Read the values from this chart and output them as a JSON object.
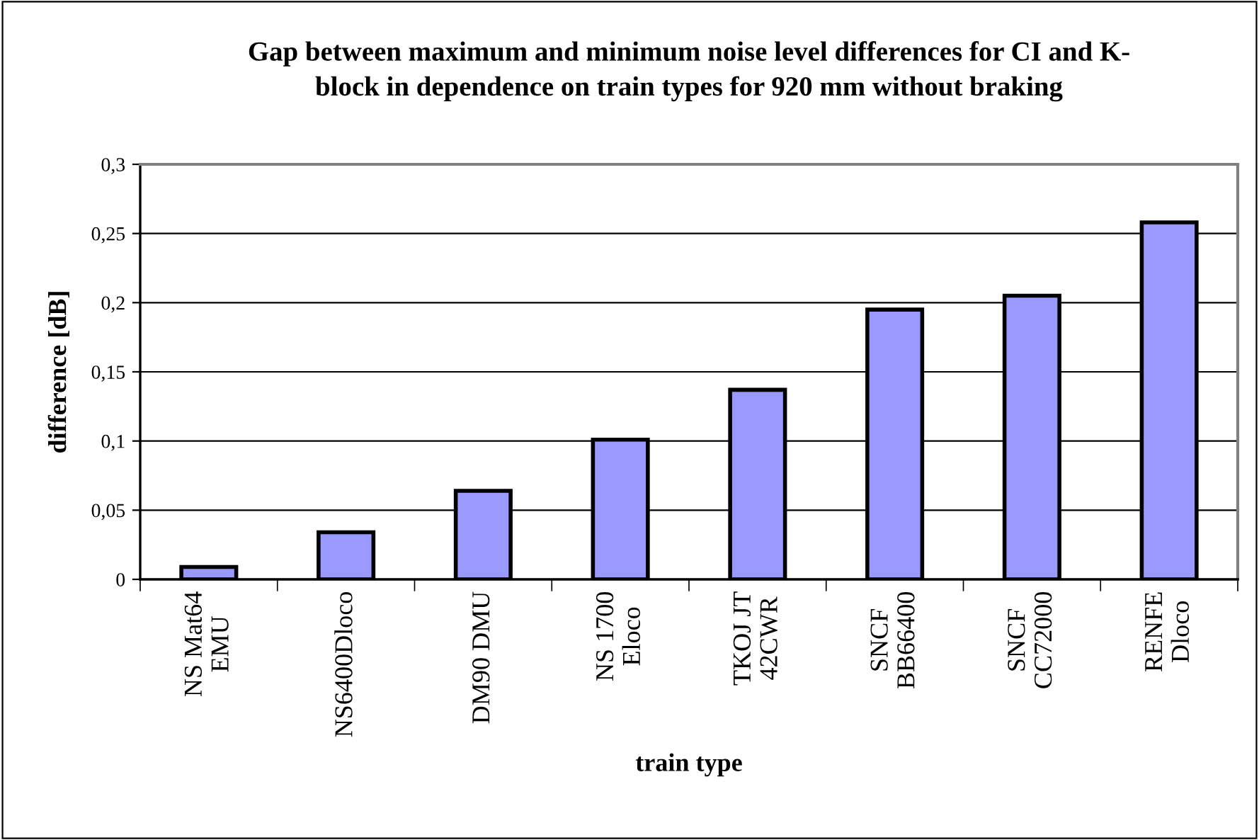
{
  "chart_data": {
    "type": "bar",
    "title": "Gap between maximum and minimum noise level differences for CI and K-\nblock in dependence on train types for 920 mm without braking",
    "xlabel": "train type",
    "ylabel": "difference [dB]",
    "categories": [
      "NS Mat64\nEMU",
      "NS6400Dloco",
      "DM90 DMU",
      "NS 1700\nEloco",
      "TKOJ JT\n42CWR",
      "SNCF\nBB66400",
      "SNCF\nCC72000",
      "RENFE\nDloco"
    ],
    "values": [
      0.009,
      0.034,
      0.064,
      0.101,
      0.137,
      0.195,
      0.205,
      0.258
    ],
    "color": "#9999ff",
    "ylim": [
      0,
      0.3
    ],
    "yticks": [
      0,
      {
        "value": 0.05,
        "label": "0,05"
      },
      {
        "value": 0.1,
        "label": "0,1"
      },
      {
        "value": 0.15,
        "label": "0,15"
      },
      {
        "value": 0.2,
        "label": "0,2"
      },
      {
        "value": 0.25,
        "label": "0,25"
      },
      {
        "value": 0.3,
        "label": "0,3"
      }
    ],
    "grid": "y"
  }
}
